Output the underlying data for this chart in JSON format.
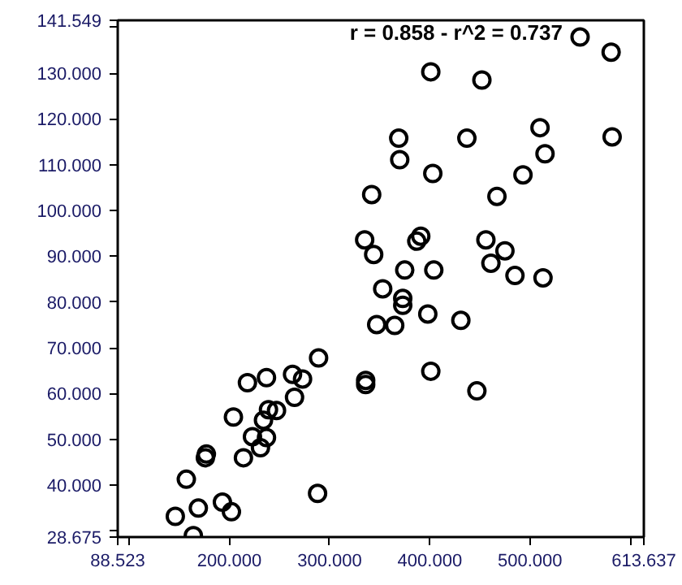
{
  "chart_data": {
    "type": "scatter",
    "marker": "circle",
    "grid": false,
    "xlim": [
      88.523,
      613.637
    ],
    "ylim": [
      28.675,
      141.549
    ],
    "xticks": [
      {
        "value": 88.523,
        "label": "88.523"
      },
      {
        "value": 100,
        "label": null
      },
      {
        "value": 200,
        "label": "200.000"
      },
      {
        "value": 300,
        "label": "300.000"
      },
      {
        "value": 400,
        "label": "400.000"
      },
      {
        "value": 500,
        "label": "500.000"
      },
      {
        "value": 600,
        "label": null
      },
      {
        "value": 613.637,
        "label": "613.637"
      }
    ],
    "yticks": [
      {
        "value": 28.675,
        "label": "28.675"
      },
      {
        "value": 30,
        "label": null
      },
      {
        "value": 40,
        "label": "40.000"
      },
      {
        "value": 50,
        "label": "50.000"
      },
      {
        "value": 60,
        "label": "60.000"
      },
      {
        "value": 70,
        "label": "70.000"
      },
      {
        "value": 80,
        "label": "80.000"
      },
      {
        "value": 90,
        "label": "90.000"
      },
      {
        "value": 100,
        "label": "100.000"
      },
      {
        "value": 110,
        "label": "110.000"
      },
      {
        "value": 120,
        "label": "120.000"
      },
      {
        "value": 130,
        "label": "130.000"
      },
      {
        "value": 140,
        "label": null
      },
      {
        "value": 141.549,
        "label": "141.549"
      }
    ],
    "annotations": [
      "r = 0.858 - r^2 = 0.737"
    ],
    "series": [
      {
        "color": "#000000",
        "x": [
          342,
          335,
          344,
          550,
          581,
          401,
          452,
          369,
          437,
          510,
          582,
          515,
          370,
          403,
          493,
          467,
          391,
          387,
          456,
          475,
          375,
          404,
          461,
          485,
          513,
          353,
          373,
          373,
          347,
          365,
          398,
          431,
          401,
          447,
          289,
          263,
          273,
          237,
          218,
          265,
          336,
          336,
          204,
          239,
          247,
          234,
          223,
          237,
          231,
          214,
          177,
          176,
          157,
          288,
          193,
          202,
          169,
          146,
          164
        ],
        "values": [
          103.5,
          93.6,
          90.4,
          137.9,
          134.6,
          130.3,
          128.5,
          115.8,
          115.8,
          118.1,
          116.1,
          112.4,
          111.1,
          108.1,
          107.8,
          103.1,
          94.4,
          93.3,
          93.6,
          91.2,
          87.0,
          87.0,
          88.5,
          85.8,
          85.3,
          82.9,
          80.8,
          79.3,
          75.1,
          74.9,
          77.4,
          76.0,
          64.9,
          60.6,
          67.8,
          64.2,
          63.2,
          63.5,
          62.4,
          59.2,
          62.9,
          62.0,
          54.9,
          56.5,
          56.3,
          54.2,
          50.6,
          50.4,
          48.2,
          46.0,
          46.8,
          46.0,
          41.3,
          38.2,
          36.3,
          34.2,
          35.0,
          33.2,
          29.0
        ]
      }
    ]
  }
}
